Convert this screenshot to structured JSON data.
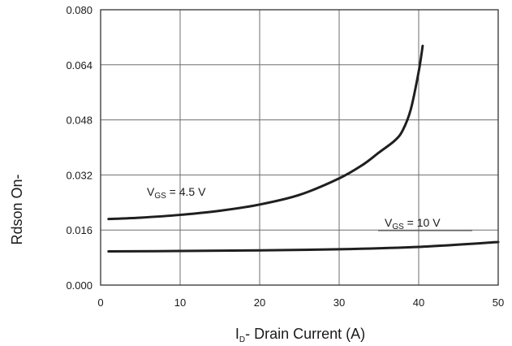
{
  "chart_data": {
    "type": "line",
    "title": "",
    "xlabel": {
      "main": "I",
      "sub": "D",
      "rest": "- Drain Current (A)"
    },
    "ylabel": "Rdson On-",
    "xlim": [
      0,
      50
    ],
    "ylim": [
      0.0,
      0.08
    ],
    "grid": true,
    "x_ticks": [
      "0",
      "10",
      "20",
      "30",
      "40",
      "50"
    ],
    "y_ticks": [
      "0.000",
      "0.016",
      "0.032",
      "0.048",
      "0.064",
      "0.080"
    ],
    "series": [
      {
        "label": {
          "main": "V",
          "sub": "GS",
          "rest": " = 4.5 V"
        },
        "x": [
          1,
          5,
          10,
          15,
          20,
          25,
          30,
          33,
          35,
          37,
          38,
          39,
          40,
          40.5
        ],
        "y": [
          0.0192,
          0.0196,
          0.0204,
          0.0216,
          0.0234,
          0.0262,
          0.031,
          0.035,
          0.0385,
          0.042,
          0.045,
          0.051,
          0.062,
          0.0695
        ]
      },
      {
        "label": {
          "main": "V",
          "sub": "GS",
          "rest": " = 10 V"
        },
        "x": [
          1,
          10,
          20,
          30,
          40,
          50
        ],
        "y": [
          0.0098,
          0.0099,
          0.0101,
          0.0104,
          0.0111,
          0.0125
        ]
      }
    ]
  },
  "colors": {
    "curve": "#1f1f1f",
    "grid": "#6e6e6e",
    "frame": "#333333",
    "background": "#ffffff"
  }
}
